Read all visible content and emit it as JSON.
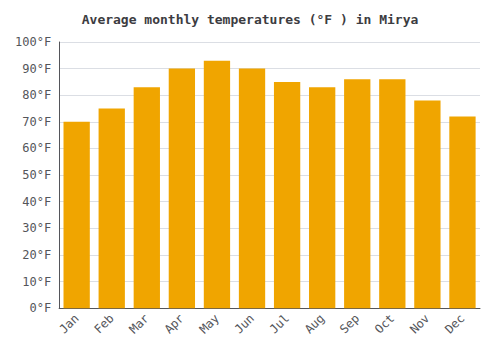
{
  "chart_data": {
    "type": "bar",
    "title": "Average monthly temperatures (°F ) in Mirya",
    "categories": [
      "Jan",
      "Feb",
      "Mar",
      "Apr",
      "May",
      "Jun",
      "Jul",
      "Aug",
      "Sep",
      "Oct",
      "Nov",
      "Dec"
    ],
    "values": [
      70,
      75,
      83,
      90,
      93,
      90,
      85,
      83,
      86,
      86,
      78,
      72
    ],
    "color": "#F0A500",
    "ylim": [
      0,
      100
    ],
    "yticks": [
      {
        "value": 0,
        "label": "0°F"
      },
      {
        "value": 10,
        "label": "10°F"
      },
      {
        "value": 20,
        "label": "20°F"
      },
      {
        "value": 30,
        "label": "30°F"
      },
      {
        "value": 40,
        "label": "40°F"
      },
      {
        "value": 50,
        "label": "50°F"
      },
      {
        "value": 60,
        "label": "60°F"
      },
      {
        "value": 70,
        "label": "70°F"
      },
      {
        "value": 80,
        "label": "80°F"
      },
      {
        "value": 90,
        "label": "90°F"
      },
      {
        "value": 100,
        "label": "100°F"
      }
    ],
    "grid": true
  }
}
